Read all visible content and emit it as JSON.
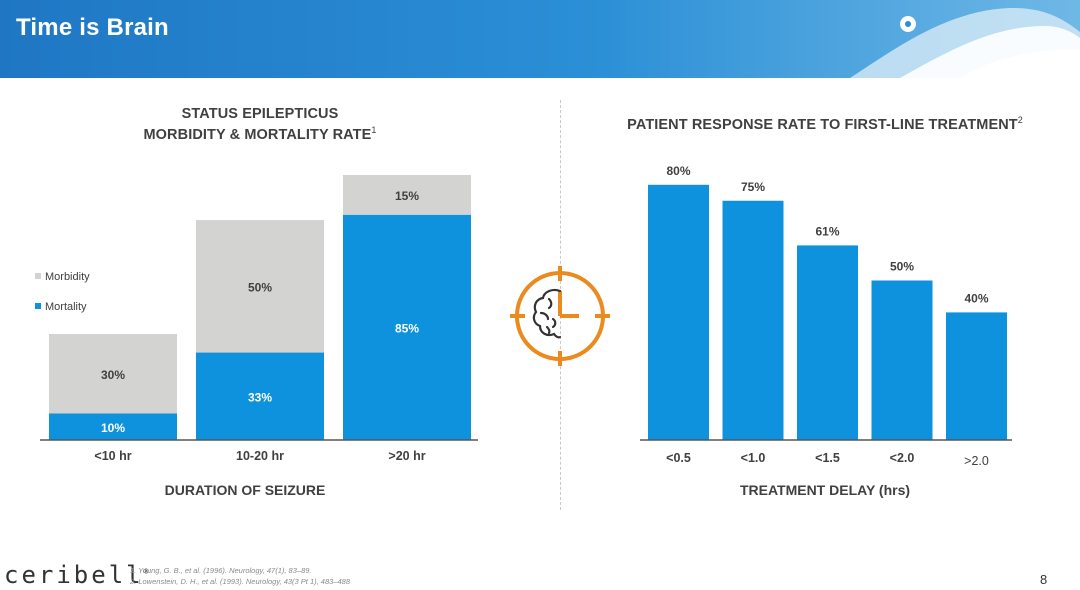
{
  "header": {
    "title": "Time is Brain"
  },
  "colors": {
    "mortality": "#0e92dd",
    "morbidity": "#d3d3d1",
    "accent_orange": "#ea8a1f",
    "axis": "#404040"
  },
  "icon": {
    "center": "brain-clock-icon"
  },
  "chart_data": [
    {
      "type": "bar",
      "stacked": true,
      "title_line1": "STATUS EPILEPTICUS",
      "title_line2": "MORBIDITY & MORTALITY RATE",
      "title_ref": "1",
      "xlabel": "DURATION OF SEIZURE",
      "ylabel": "",
      "categories": [
        "<10 hr",
        "10-20 hr",
        ">20 hr"
      ],
      "series": [
        {
          "name": "Mortality",
          "values": [
            10,
            33,
            85
          ],
          "labels": [
            "10%",
            "33%",
            "85%"
          ]
        },
        {
          "name": "Morbidity",
          "values": [
            30,
            50,
            15
          ],
          "labels": [
            "30%",
            "50%",
            "15%"
          ]
        }
      ],
      "ylim": [
        0,
        100
      ],
      "legend_position": "left",
      "grid": false
    },
    {
      "type": "bar",
      "title": "PATIENT RESPONSE RATE TO FIRST-LINE TREATMENT",
      "title_ref": "2",
      "xlabel": "TREATMENT DELAY (hrs)",
      "ylabel": "",
      "categories": [
        "<0.5",
        "<1.0",
        "<1.5",
        "<2.0",
        ">2.0"
      ],
      "values": [
        80,
        75,
        61,
        50,
        40
      ],
      "labels": [
        "80%",
        "75%",
        "61%",
        "50%",
        "40%"
      ],
      "ylim": [
        0,
        100
      ],
      "grid": false
    }
  ],
  "footer": {
    "logo": "ceribell",
    "logo_mark": "®",
    "refs": [
      "1.   Young, G. B., et al. (1996). Neurology, 47(1), 83–89.",
      "2.   Lowenstein, D. H., et al. (1993). Neurology, 43(3 Pt 1), 483–488"
    ],
    "page": "8"
  }
}
